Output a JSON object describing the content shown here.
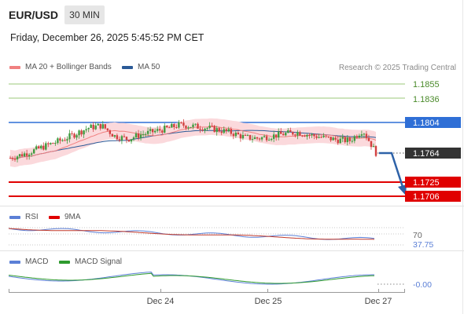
{
  "header": {
    "pair": "EUR/USD",
    "timeframe": "30 MIN",
    "datetime": "Friday, December 26, 2025 5:45:52 PM CET"
  },
  "main_panel": {
    "legend": [
      {
        "label": "MA 20 + Bollinger Bands",
        "color": "#f08080"
      },
      {
        "label": "MA 50",
        "color": "#2b5a97"
      }
    ],
    "credit": "Research © 2025 Trading Central",
    "levels": {
      "r2": "1.1855",
      "r1": "1.1836",
      "pivot": "1.1804",
      "last": "1.1764",
      "s1": "1.1725",
      "s2": "1.1706"
    }
  },
  "rsi_panel": {
    "legend": [
      {
        "label": "RSI",
        "color": "#5b7fd6"
      },
      {
        "label": "9MA",
        "color": "#e00000"
      }
    ],
    "levels": {
      "upper": "70",
      "value": "37.75"
    }
  },
  "macd_panel": {
    "legend": [
      {
        "label": "MACD",
        "color": "#5b7fd6"
      },
      {
        "label": "MACD Signal",
        "color": "#2e9a2e"
      }
    ],
    "value": "-0.00"
  },
  "x_axis": {
    "labels": [
      "Dec 24",
      "Dec 25",
      "Dec 27"
    ]
  },
  "colors": {
    "resistance": "#6ab04c",
    "pivot": "#2f6fd6",
    "support": "#e00000",
    "last": "#333333",
    "bull_candle": "#3f9b3f",
    "bear_candle": "#d24040",
    "bollinger_fill": "#fbd9dc",
    "ma50": "#2b5a97",
    "arrow": "#2e62a8"
  },
  "chart_data": {
    "type": "candlestick",
    "symbol": "EUR/USD",
    "x_labels": [
      "Dec 24",
      "Dec 25",
      "Dec 27"
    ],
    "y_levels": [
      1.1855,
      1.1836,
      1.1804,
      1.1764,
      1.1725,
      1.1706
    ],
    "close_profile": [
      1.1757,
      1.1762,
      1.1768,
      1.1775,
      1.1781,
      1.1789,
      1.1797,
      1.18,
      1.1786,
      1.1782,
      1.1788,
      1.1792,
      1.1796,
      1.1801,
      1.1799,
      1.1797,
      1.1794,
      1.179,
      1.1784,
      1.1783,
      1.1786,
      1.1789,
      1.1791,
      1.1787,
      1.1784,
      1.1781,
      1.178,
      1.1794,
      1.1764
    ],
    "rsi": {
      "upper_level": 70,
      "last": 37.75
    },
    "macd": {
      "last": -0.0
    }
  }
}
